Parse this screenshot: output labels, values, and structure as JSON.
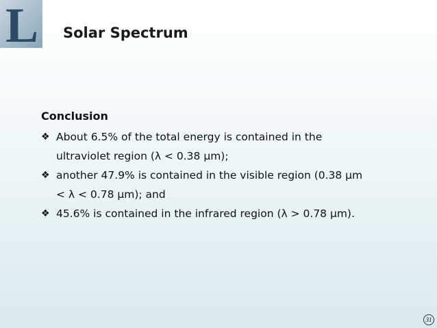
{
  "header": {
    "logo_letter": "L",
    "title": "Solar Spectrum"
  },
  "body": {
    "heading": "Conclusion",
    "bullets": [
      [
        "About 6.5% of the total energy is contained in the",
        "ultraviolet region (λ < 0.38 μm);"
      ],
      [
        "another 47.9% is contained in the visible region (0.38 μm",
        "< λ < 0.78 μm); and"
      ],
      [
        "45.6% is contained in the infrared region (λ > 0.78 μm)."
      ]
    ]
  },
  "footer": {
    "page_number": "31"
  }
}
